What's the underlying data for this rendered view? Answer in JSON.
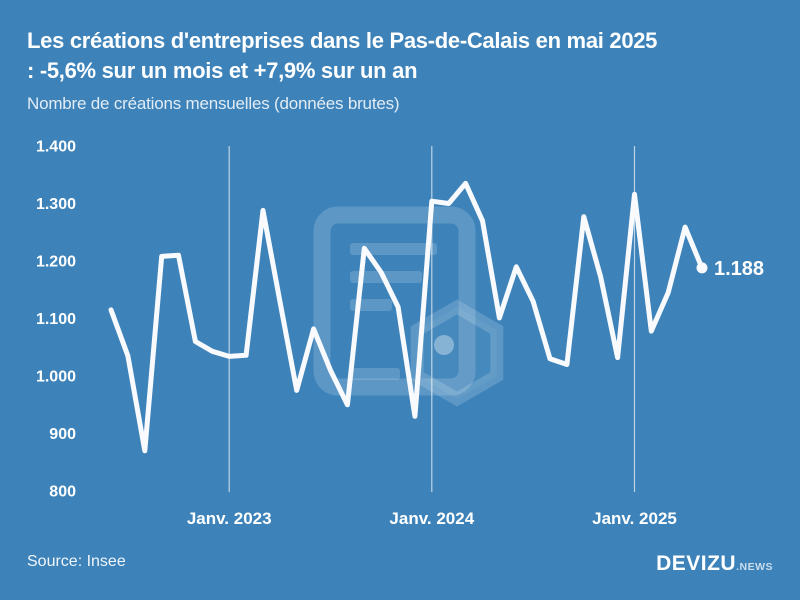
{
  "header": {
    "title_line1": "Les créations d'entreprises dans le Pas-de-Calais en mai 2025",
    "title_line2": ": -5,6% sur un mois et +7,9% sur un an",
    "subtitle": "Nombre de créations mensuelles (données brutes)"
  },
  "footer": {
    "source": "Source: Insee",
    "brand": "DEVIZU",
    "brand_suffix": ".NEWS"
  },
  "colors": {
    "background": "#3d83ba",
    "series_line": "#f8fafd",
    "text": "#ffffff",
    "subtitle_text": "rgba(255,255,255,0.85)",
    "gridline": "rgba(255,255,255,0.65)",
    "watermark": "rgba(255,255,255,0.16)"
  },
  "chart_data": {
    "type": "line",
    "title": "Les créations d'entreprises dans le Pas-de-Calais en mai 2025 : -5,6% sur un mois et +7,9% sur un an",
    "subtitle": "Nombre de créations mensuelles (données brutes)",
    "x": [
      "2022-06",
      "2022-07",
      "2022-08",
      "2022-09",
      "2022-10",
      "2022-11",
      "2022-12",
      "2023-01",
      "2023-02",
      "2023-03",
      "2023-04",
      "2023-05",
      "2023-06",
      "2023-07",
      "2023-08",
      "2023-09",
      "2023-10",
      "2023-11",
      "2023-12",
      "2024-01",
      "2024-02",
      "2024-03",
      "2024-04",
      "2024-05",
      "2024-06",
      "2024-07",
      "2024-08",
      "2024-09",
      "2024-10",
      "2024-11",
      "2024-12",
      "2025-01",
      "2025-02",
      "2025-03",
      "2025-04",
      "2025-05"
    ],
    "values": [
      1115,
      1035,
      870,
      1208,
      1210,
      1060,
      1043,
      1034,
      1036,
      1288,
      1130,
      975,
      1082,
      1010,
      950,
      1222,
      1180,
      1120,
      930,
      1304,
      1300,
      1335,
      1270,
      1101,
      1190,
      1130,
      1030,
      1020,
      1277,
      1172,
      1032,
      1316,
      1078,
      1145,
      1259,
      1188
    ],
    "ylim": [
      800,
      1400
    ],
    "y_ticks": [
      {
        "label": "1.400",
        "value": 1400
      },
      {
        "label": "1.300",
        "value": 1300
      },
      {
        "label": "1.200",
        "value": 1200
      },
      {
        "label": "1.100",
        "value": 1100
      },
      {
        "label": "1.000",
        "value": 1000
      },
      {
        "label": "900",
        "value": 900
      },
      {
        "label": "800",
        "value": 800
      }
    ],
    "x_ticks": [
      {
        "label": "Janv. 2023",
        "index": 7
      },
      {
        "label": "Janv. 2024",
        "index": 19
      },
      {
        "label": "Janv. 2025",
        "index": 31
      }
    ],
    "end_value": 1188,
    "end_label": "1.188",
    "grid": "vertical-only",
    "legend": false
  }
}
